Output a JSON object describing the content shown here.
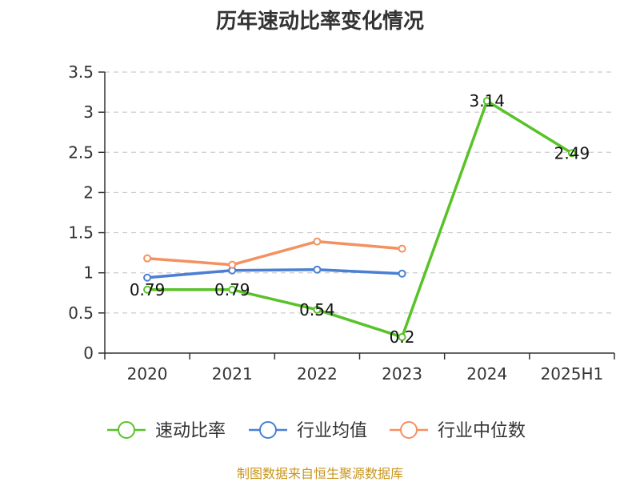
{
  "chart_data": {
    "type": "line",
    "title": "历年速动比率变化情况",
    "categories": [
      "2020",
      "2021",
      "2022",
      "2023",
      "2024",
      "2025H1"
    ],
    "ylim": [
      0,
      3.5
    ],
    "yticks": [
      "0",
      "0.5",
      "1",
      "1.5",
      "2",
      "2.5",
      "3",
      "3.5"
    ],
    "grid": true,
    "legend_position": "bottom",
    "series": [
      {
        "name": "速动比率",
        "color": "#5ac229",
        "values": [
          0.79,
          0.79,
          0.54,
          0.2,
          3.14,
          2.49
        ],
        "labels": [
          "0.79",
          "0.79",
          "0.54",
          "0.2",
          "3.14",
          "2.49"
        ]
      },
      {
        "name": "行业均值",
        "color": "#4a7fd4",
        "values": [
          0.94,
          1.03,
          1.04,
          0.99,
          null,
          null
        ]
      },
      {
        "name": "行业中位数",
        "color": "#f39160",
        "values": [
          1.18,
          1.1,
          1.39,
          1.3,
          null,
          null
        ]
      }
    ]
  },
  "source_note": "制图数据来自恒生聚源数据库"
}
